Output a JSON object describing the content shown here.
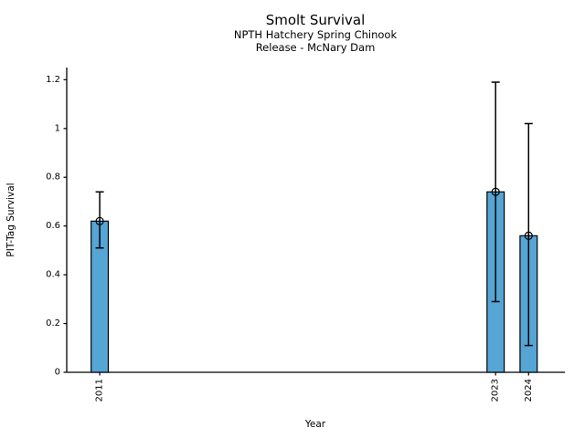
{
  "chart_data": {
    "type": "bar",
    "title": "Smolt Survival",
    "subtitle_lines": [
      "NPTH Hatchery Spring Chinook",
      "Release - McNary Dam"
    ],
    "xlabel": "Year",
    "ylabel": "PIT-Tag Survival",
    "x": [
      2011,
      2023,
      2024
    ],
    "categories": [
      "2011",
      "2023",
      "2024"
    ],
    "values": [
      0.62,
      0.74,
      0.56
    ],
    "error_low": [
      0.51,
      0.29,
      0.11
    ],
    "error_high": [
      0.74,
      1.19,
      1.02
    ],
    "marker": "open-circle",
    "bar_color": "#55a5d5",
    "bar_edge_color": "#000000",
    "error_color": "#000000",
    "background_color": "#ffffff",
    "bar_width_years": 0.52,
    "xlim": [
      2010,
      2025.1
    ],
    "ylim": [
      0,
      1.25
    ],
    "xticks": [
      2011,
      2023,
      2024
    ],
    "xtick_labels": [
      "2011",
      "2023",
      "2024"
    ],
    "xtick_rotation": 90,
    "yticks": [
      0,
      0.2,
      0.4,
      0.6,
      0.8,
      1,
      1.2
    ],
    "ytick_labels": [
      "0",
      "0.2",
      "0.4",
      "0.6",
      "0.8",
      "1",
      "1.2"
    ],
    "grid": false,
    "legend": false
  }
}
